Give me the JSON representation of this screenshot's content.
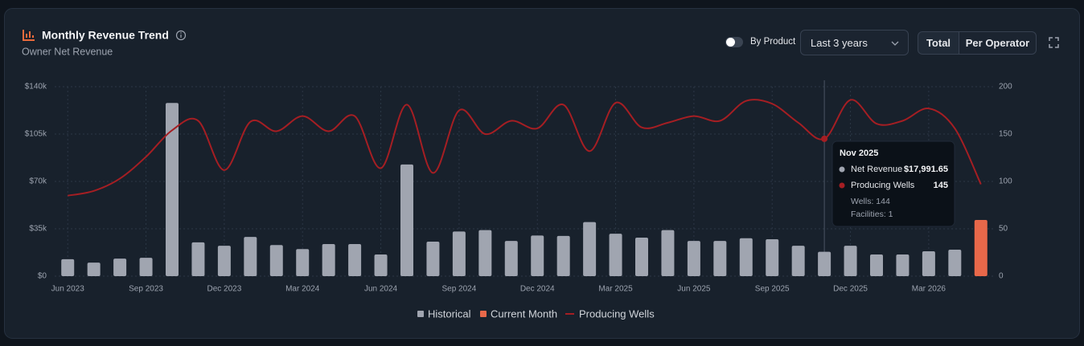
{
  "controls": {
    "toggle_label": "By Product",
    "range": "Last 3 years",
    "buttons": [
      "Total",
      "Per Operator"
    ]
  },
  "chart_data": {
    "type": "bar",
    "title": "Monthly Revenue Trend",
    "subtitle": "Owner Net Revenue",
    "categories": [
      "Jun 2023",
      null,
      null,
      "Sep 2023",
      null,
      null,
      "Dec 2023",
      null,
      null,
      "Mar 2024",
      null,
      null,
      "Jun 2024",
      null,
      null,
      "Sep 2024",
      null,
      null,
      "Dec 2024",
      null,
      null,
      "Mar 2025",
      null,
      null,
      "Jun 2025",
      null,
      null,
      "Sep 2025",
      null,
      null,
      "Dec 2025",
      null,
      null,
      "Mar 2026",
      null,
      null
    ],
    "series": [
      {
        "name": "Historical",
        "type": "bar",
        "color": "#a0a5b0",
        "values": [
          12500,
          10000,
          13000,
          13600,
          128000,
          25000,
          22500,
          29000,
          23000,
          20000,
          23700,
          23700,
          16000,
          82500,
          25500,
          33000,
          34000,
          26000,
          30000,
          29700,
          40000,
          31400,
          28500,
          34000,
          26000,
          26000,
          28000,
          27300,
          22500,
          18000,
          22500,
          16000,
          16000,
          18400,
          19600,
          null
        ]
      },
      {
        "name": "Current Month",
        "type": "bar",
        "color": "#e8684a",
        "values": [
          null,
          null,
          null,
          null,
          null,
          null,
          null,
          null,
          null,
          null,
          null,
          null,
          null,
          null,
          null,
          null,
          null,
          null,
          null,
          null,
          null,
          null,
          null,
          null,
          null,
          null,
          null,
          null,
          null,
          null,
          null,
          null,
          null,
          null,
          null,
          41500
        ]
      },
      {
        "name": "Producing Wells",
        "type": "line",
        "axis": "y2",
        "color": "#a51e23",
        "values": [
          85,
          90,
          103,
          126,
          154,
          164,
          112,
          163,
          153,
          169,
          153,
          169,
          114,
          181,
          109,
          175,
          150,
          164,
          156,
          181,
          132,
          183,
          157,
          162,
          169,
          164,
          185,
          182,
          162,
          145,
          186,
          161,
          164,
          177,
          156,
          97
        ]
      }
    ],
    "ylim": [
      0,
      140000
    ],
    "yticks": [
      {
        "value": 0,
        "label": "$0"
      },
      {
        "value": 35000,
        "label": "$35k"
      },
      {
        "value": 70000,
        "label": "$70k"
      },
      {
        "value": 105000,
        "label": "$105k"
      },
      {
        "value": 140000,
        "label": "$140k"
      }
    ],
    "y2lim": [
      0,
      200
    ],
    "y2ticks": [
      0,
      50,
      100,
      150,
      200
    ],
    "grid": true,
    "legend": "bottom",
    "tooltip": {
      "title": "Nov 2025",
      "rows": [
        {
          "label": "Net Revenue",
          "value": "$17,991.65"
        },
        {
          "label": "Producing Wells",
          "value": "145"
        }
      ],
      "details": [
        "Wells: 144",
        "Facilities: 1"
      ]
    }
  }
}
